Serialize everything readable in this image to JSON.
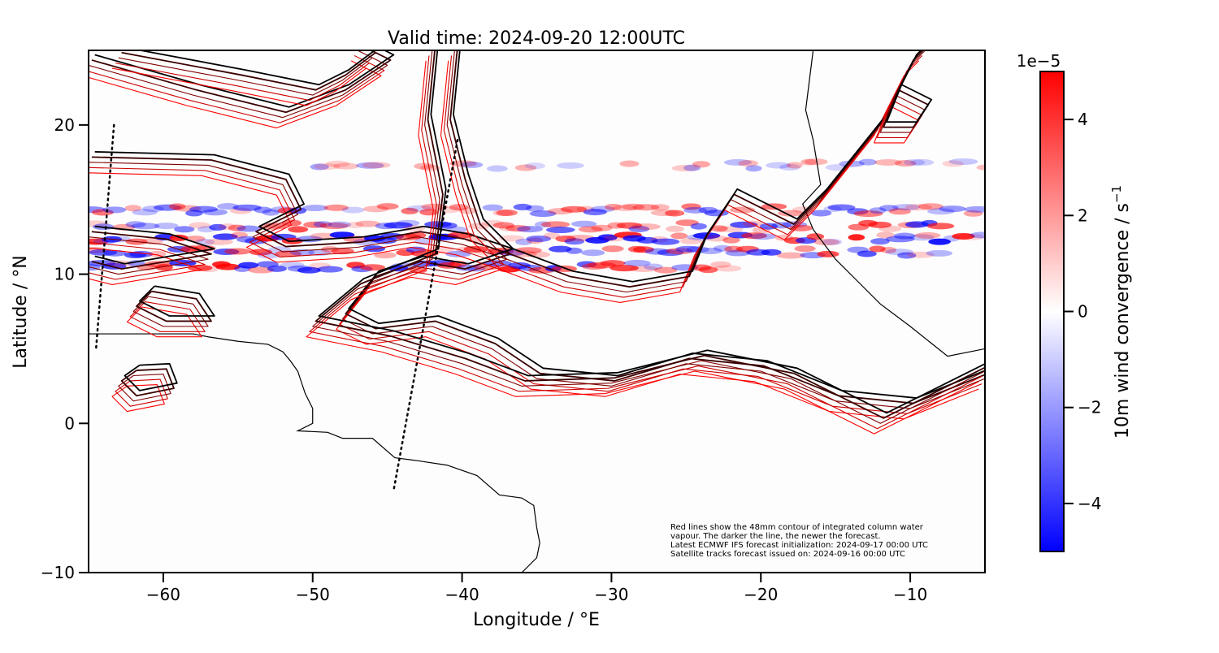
{
  "chart_data": {
    "type": "heatmap",
    "title": "Valid time: 2024-09-20 12:00UTC",
    "xlabel": "Longitude / °E",
    "ylabel": "Latitude / °N",
    "xlim": [
      -65,
      -5
    ],
    "ylim": [
      -10,
      25
    ],
    "xticks": [
      -60,
      -50,
      -40,
      -30,
      -20,
      -10
    ],
    "yticks": [
      -10,
      0,
      10,
      20
    ],
    "xtick_labels": [
      "−60",
      "−50",
      "−40",
      "−30",
      "−20",
      "−10"
    ],
    "ytick_labels": [
      "−10",
      "0",
      "10",
      "20"
    ],
    "colorbar": {
      "label": "10m wind convergence / s",
      "label_exponent": "−1",
      "offset_text": "1e−5",
      "range": [
        -5,
        5
      ],
      "ticks": [
        -4,
        -2,
        0,
        2,
        4
      ],
      "tick_labels": [
        "−4",
        "−2",
        "0",
        "2",
        "4"
      ],
      "colormap": "bwr",
      "colors": {
        "low": "#0000ff",
        "mid": "#ffffff",
        "high": "#ff0000"
      }
    },
    "convergence_bands_lat": [
      17.3,
      14.3,
      12.5,
      11.5,
      10.5
    ],
    "annotation": [
      "Red lines show the 48mm contour of integrated column water",
      "vapour. The darker the line, the newer the forecast.",
      "Latest ECMWF IFS forecast initialization: 2024-09-17 00:00 UTC",
      "Satellite tracks forecast issued on: 2024-09-16 00:00 UTC"
    ],
    "contour_colors": [
      "#ff0000",
      "#cc0000",
      "#800000",
      "#3a0000",
      "#000000"
    ],
    "satellite_tracks": [
      [
        [
          -63.3,
          20
        ],
        [
          -64.5,
          5
        ]
      ],
      [
        [
          -40.3,
          19
        ],
        [
          -44.6,
          -4.6
        ]
      ]
    ]
  }
}
